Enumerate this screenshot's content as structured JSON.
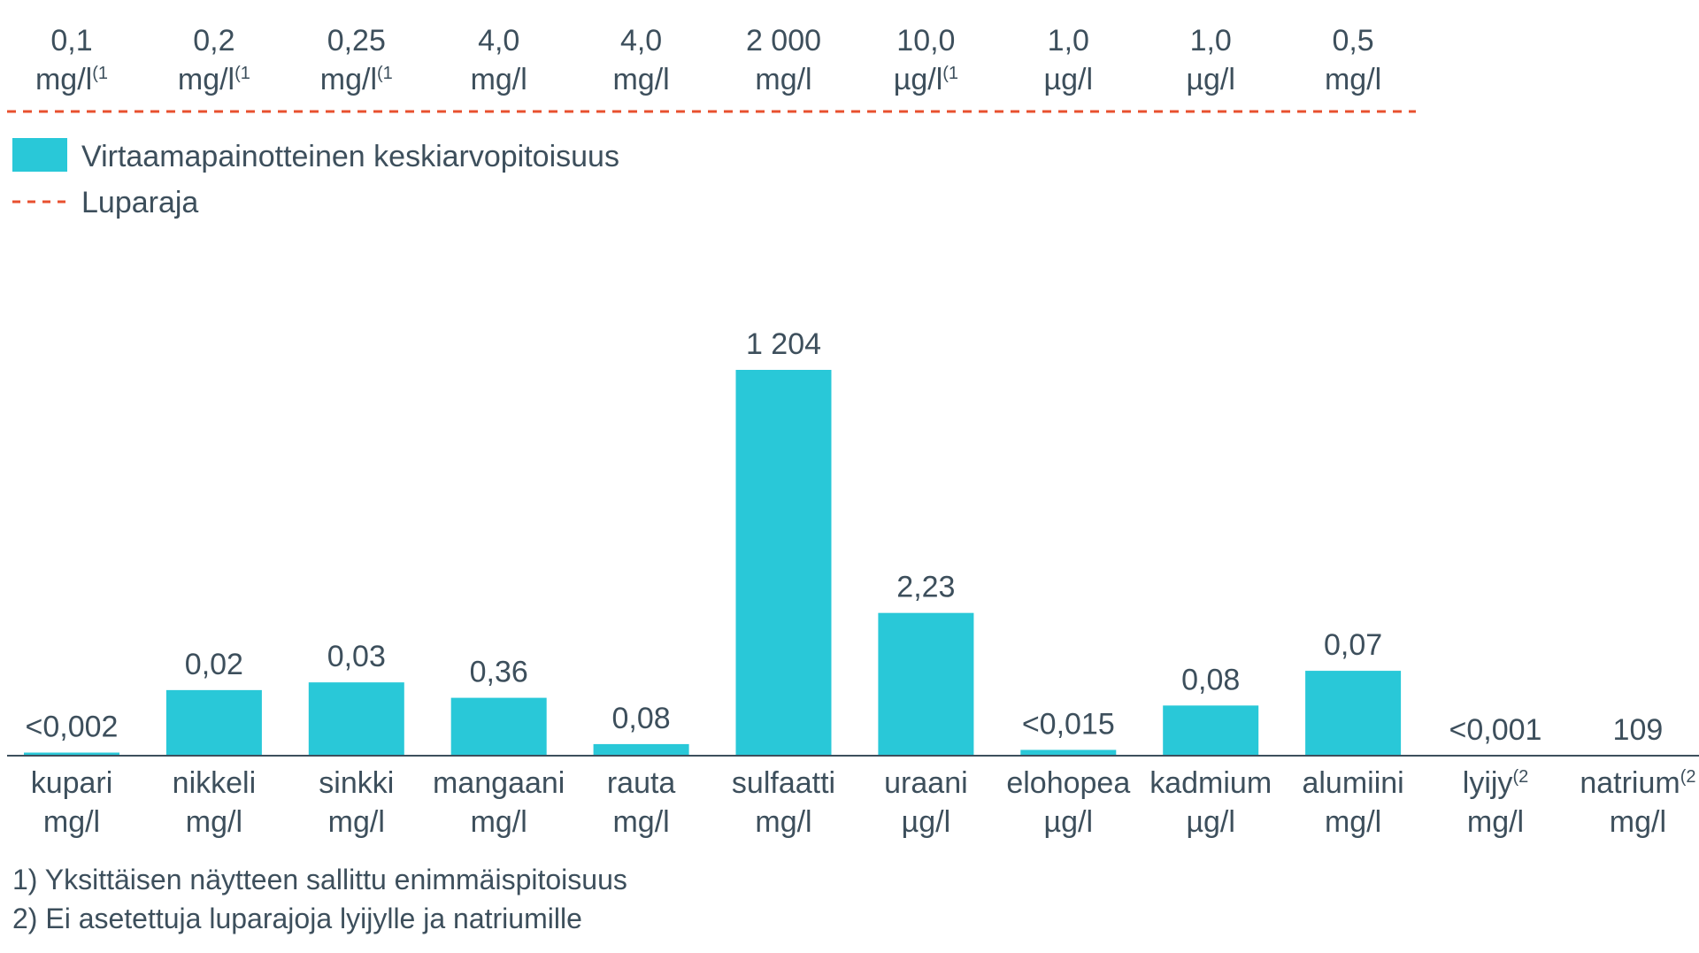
{
  "colors": {
    "bar": "#29c8d8",
    "limit_line": "#e8502f",
    "text": "#3d4f5c",
    "axis": "#3d4f5c"
  },
  "chart_data": {
    "type": "bar",
    "categories": [
      {
        "name": "kupari",
        "unit": "mg/l",
        "sup": ""
      },
      {
        "name": "nikkeli",
        "unit": "mg/l",
        "sup": ""
      },
      {
        "name": "sinkki",
        "unit": "mg/l",
        "sup": ""
      },
      {
        "name": "mangaani",
        "unit": "mg/l",
        "sup": ""
      },
      {
        "name": "rauta",
        "unit": "mg/l",
        "sup": ""
      },
      {
        "name": "sulfaatti",
        "unit": "mg/l",
        "sup": ""
      },
      {
        "name": "uraani",
        "unit": "µg/l",
        "sup": ""
      },
      {
        "name": "elohopea",
        "unit": "µg/l",
        "sup": ""
      },
      {
        "name": "kadmium",
        "unit": "µg/l",
        "sup": ""
      },
      {
        "name": "alumiini",
        "unit": "mg/l",
        "sup": ""
      },
      {
        "name": "lyijy",
        "unit": "mg/l",
        "sup": "(2"
      },
      {
        "name": "natrium",
        "unit": "mg/l",
        "sup": "(2"
      }
    ],
    "values": [
      0.002,
      0.02,
      0.03,
      0.36,
      0.08,
      1204,
      2.23,
      0.015,
      0.08,
      0.07,
      0.001,
      109
    ],
    "bar_fill_fraction": [
      0.008,
      0.17,
      0.19,
      0.15,
      0.03,
      1.0,
      0.37,
      0.015,
      0.13,
      0.22,
      0,
      0
    ],
    "value_labels": [
      "<0,002",
      "0,02",
      "0,03",
      "0,36",
      "0,08",
      "1 204",
      "2,23",
      "<0,015",
      "0,08",
      "0,07",
      "<0,001",
      "109"
    ],
    "series": [
      {
        "name": "Virtaamapainotteinen keskiarvopitoisuus"
      }
    ],
    "limits": [
      {
        "value": "0,1",
        "unit": "mg/l",
        "sup": "(1"
      },
      {
        "value": "0,2",
        "unit": "mg/l",
        "sup": "(1"
      },
      {
        "value": "0,25",
        "unit": "mg/l",
        "sup": "(1"
      },
      {
        "value": "4,0",
        "unit": "mg/l",
        "sup": ""
      },
      {
        "value": "4,0",
        "unit": "mg/l",
        "sup": ""
      },
      {
        "value": "2 000",
        "unit": "mg/l",
        "sup": ""
      },
      {
        "value": "10,0",
        "unit": "µg/l",
        "sup": "(1"
      },
      {
        "value": "1,0",
        "unit": "µg/l",
        "sup": ""
      },
      {
        "value": "1,0",
        "unit": "µg/l",
        "sup": ""
      },
      {
        "value": "0,5",
        "unit": "mg/l",
        "sup": ""
      }
    ],
    "limit_legend": "Luparaja",
    "legend_placement": "top-left",
    "grid": false
  },
  "footnotes": [
    "1) Yksittäisen näytteen sallittu enimmäispitoisuus",
    "2) Ei asetettuja luparajoja lyijylle ja natriumille"
  ]
}
